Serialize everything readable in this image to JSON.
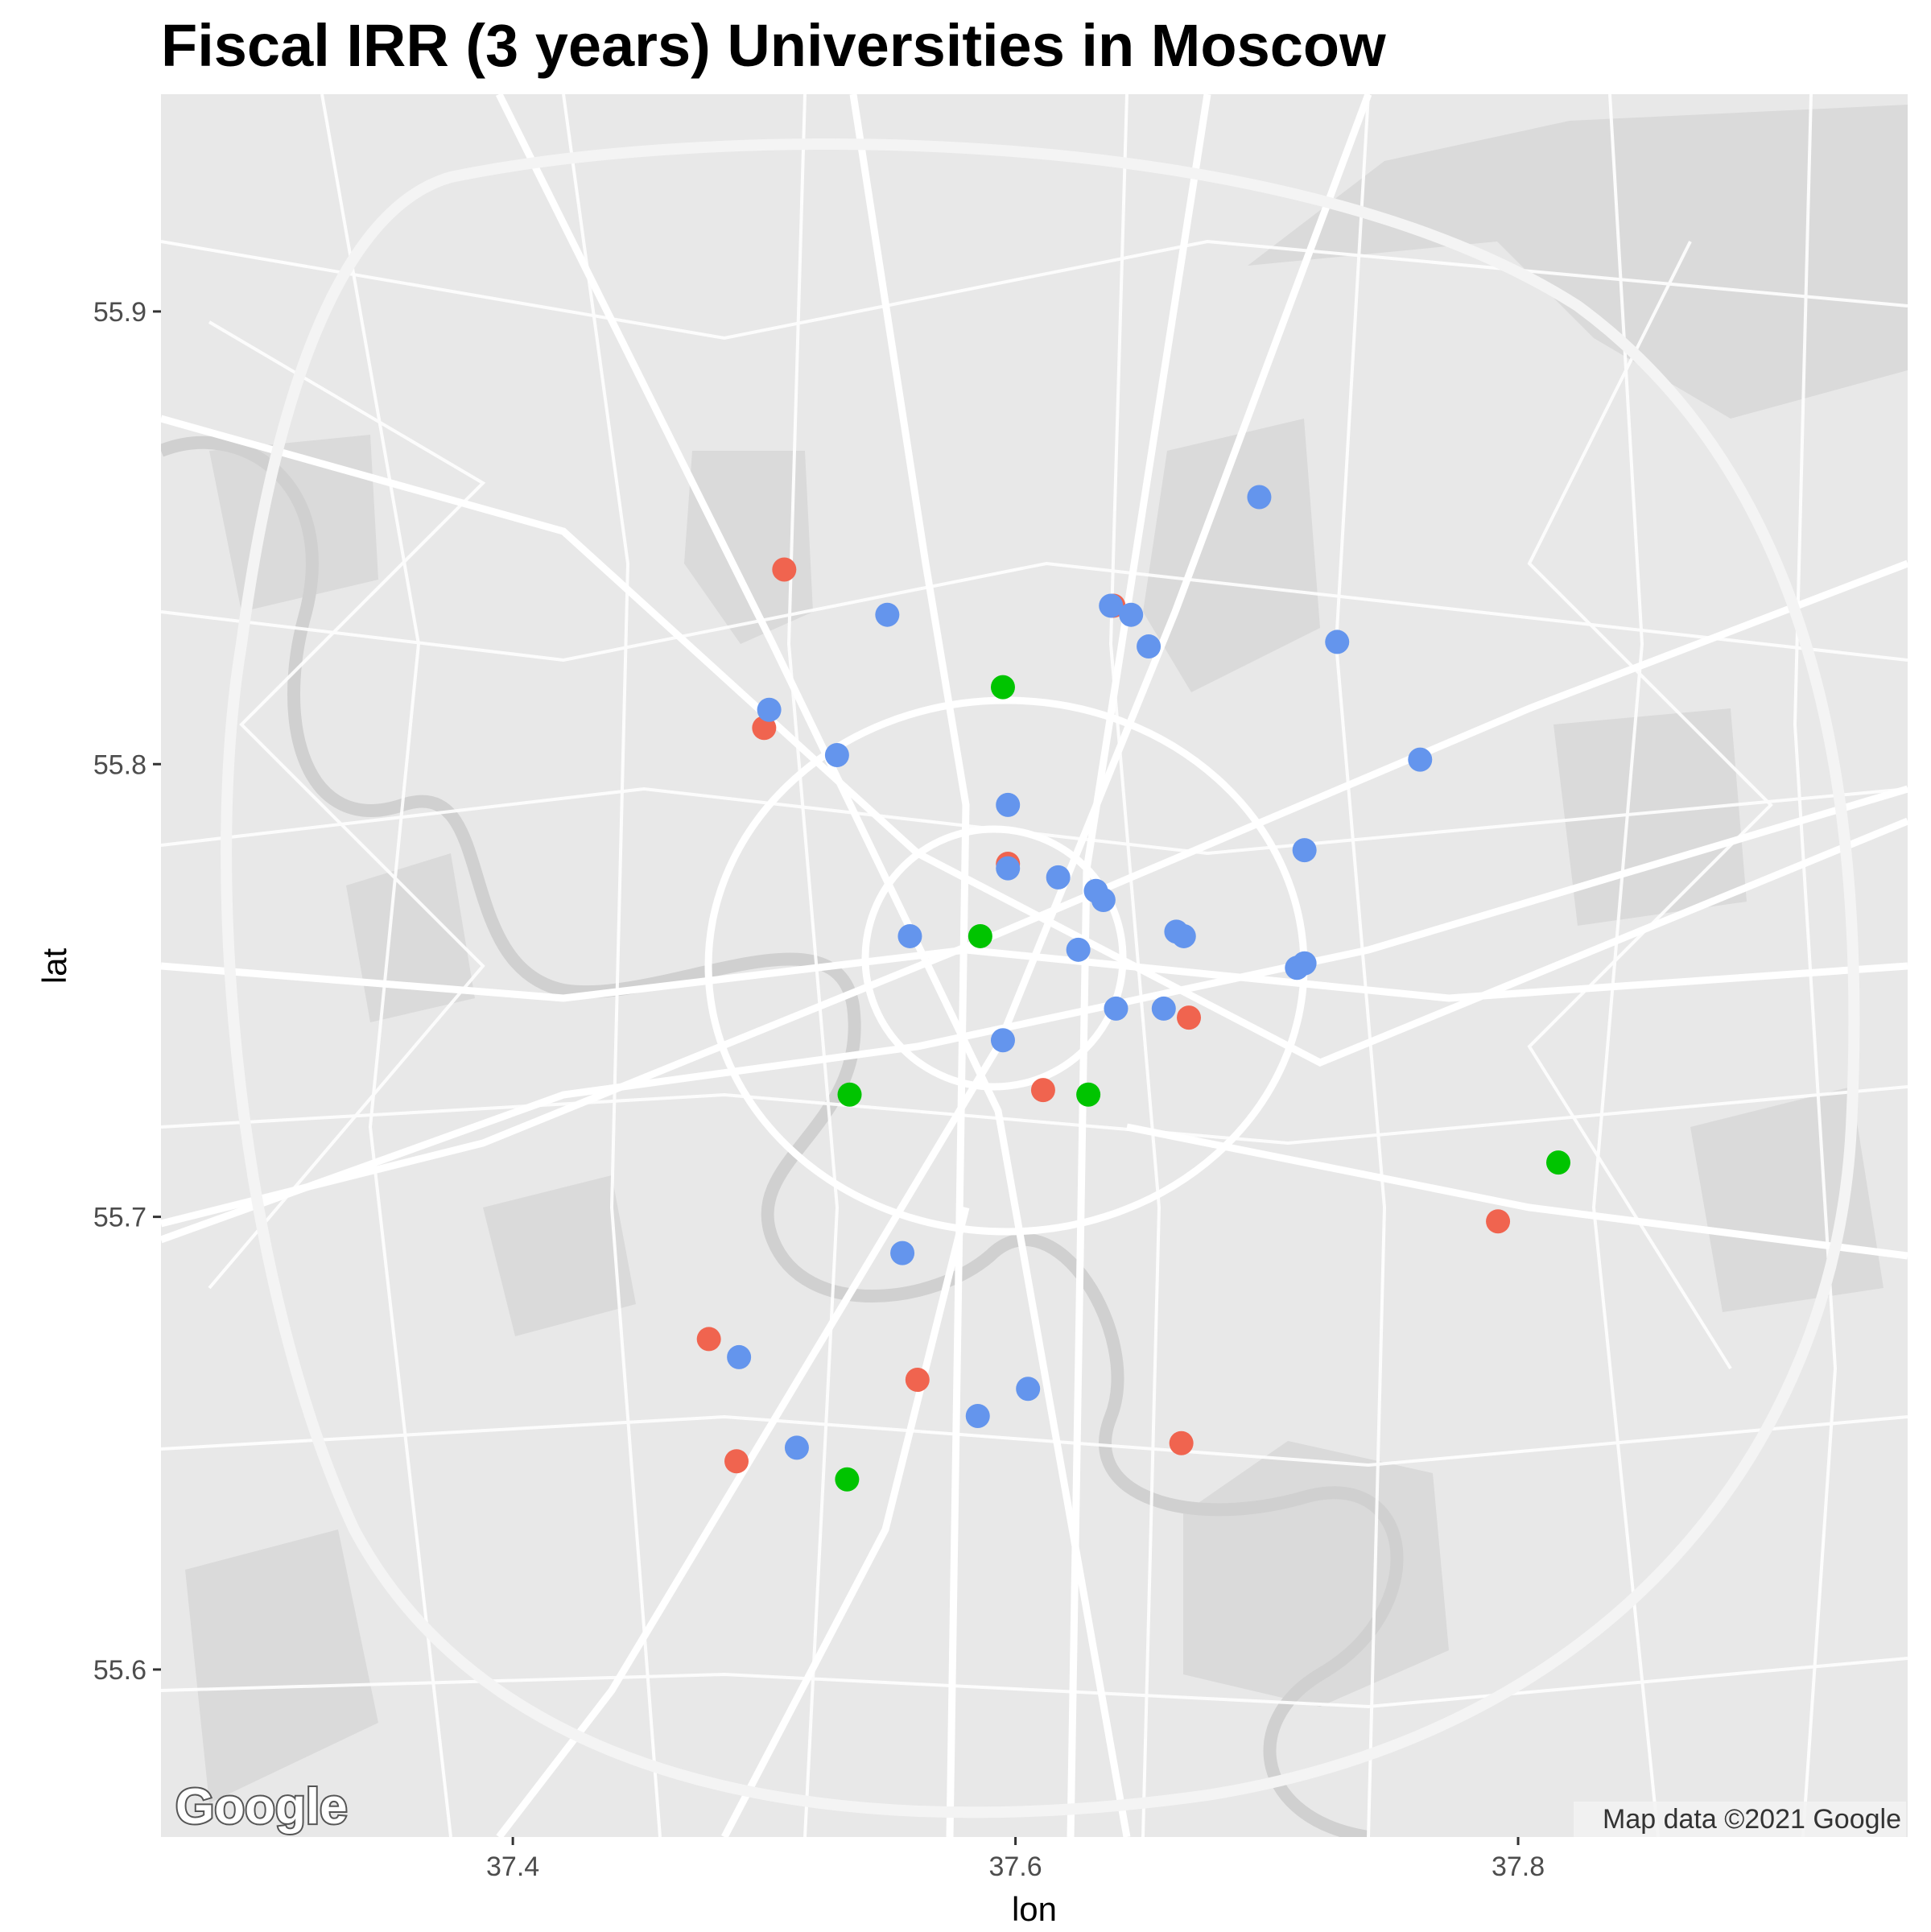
{
  "chart_data": {
    "type": "scatter",
    "title": "Fiscal IRR (3 years) Universities in Moscow",
    "xlabel": "lon",
    "ylabel": "lat",
    "xlim": [
      37.26,
      37.955
    ],
    "ylim": [
      55.563,
      55.948
    ],
    "x_ticks": [
      "37.4",
      "37.6",
      "37.8"
    ],
    "y_ticks": [
      "55.6",
      "55.7",
      "55.8",
      "55.9"
    ],
    "basemap": "Google road map, light gray style",
    "attribution": "Map data ©2021 Google",
    "logo": "Google",
    "colors": {
      "red": "#f0644f",
      "green": "#00c400",
      "blue": "#6495ed"
    },
    "series": [
      {
        "color": "red",
        "points": [
          [
            37.508,
            55.843
          ],
          [
            37.5,
            55.808
          ],
          [
            37.639,
            55.835
          ],
          [
            37.597,
            55.778
          ],
          [
            37.669,
            55.744
          ],
          [
            37.611,
            55.728
          ],
          [
            37.792,
            55.699
          ],
          [
            37.478,
            55.673
          ],
          [
            37.561,
            55.664
          ],
          [
            37.489,
            55.646
          ],
          [
            37.666,
            55.65
          ]
        ]
      },
      {
        "color": "green",
        "points": [
          [
            37.595,
            55.817
          ],
          [
            37.586,
            55.762
          ],
          [
            37.534,
            55.727
          ],
          [
            37.629,
            55.727
          ],
          [
            37.816,
            55.712
          ],
          [
            37.533,
            55.642
          ]
        ]
      },
      {
        "color": "blue",
        "points": [
          [
            37.697,
            55.859
          ],
          [
            37.549,
            55.833
          ],
          [
            37.638,
            55.835
          ],
          [
            37.646,
            55.833
          ],
          [
            37.653,
            55.826
          ],
          [
            37.728,
            55.827
          ],
          [
            37.502,
            55.812
          ],
          [
            37.529,
            55.802
          ],
          [
            37.761,
            55.801
          ],
          [
            37.597,
            55.791
          ],
          [
            37.715,
            55.781
          ],
          [
            37.597,
            55.777
          ],
          [
            37.617,
            55.775
          ],
          [
            37.632,
            55.772
          ],
          [
            37.635,
            55.77
          ],
          [
            37.558,
            55.762
          ],
          [
            37.664,
            55.763
          ],
          [
            37.667,
            55.762
          ],
          [
            37.625,
            55.759
          ],
          [
            37.712,
            55.755
          ],
          [
            37.715,
            55.756
          ],
          [
            37.64,
            55.746
          ],
          [
            37.659,
            55.746
          ],
          [
            37.595,
            55.739
          ],
          [
            37.555,
            55.692
          ],
          [
            37.49,
            55.669
          ],
          [
            37.605,
            55.662
          ],
          [
            37.585,
            55.656
          ],
          [
            37.513,
            55.649
          ]
        ]
      }
    ]
  }
}
